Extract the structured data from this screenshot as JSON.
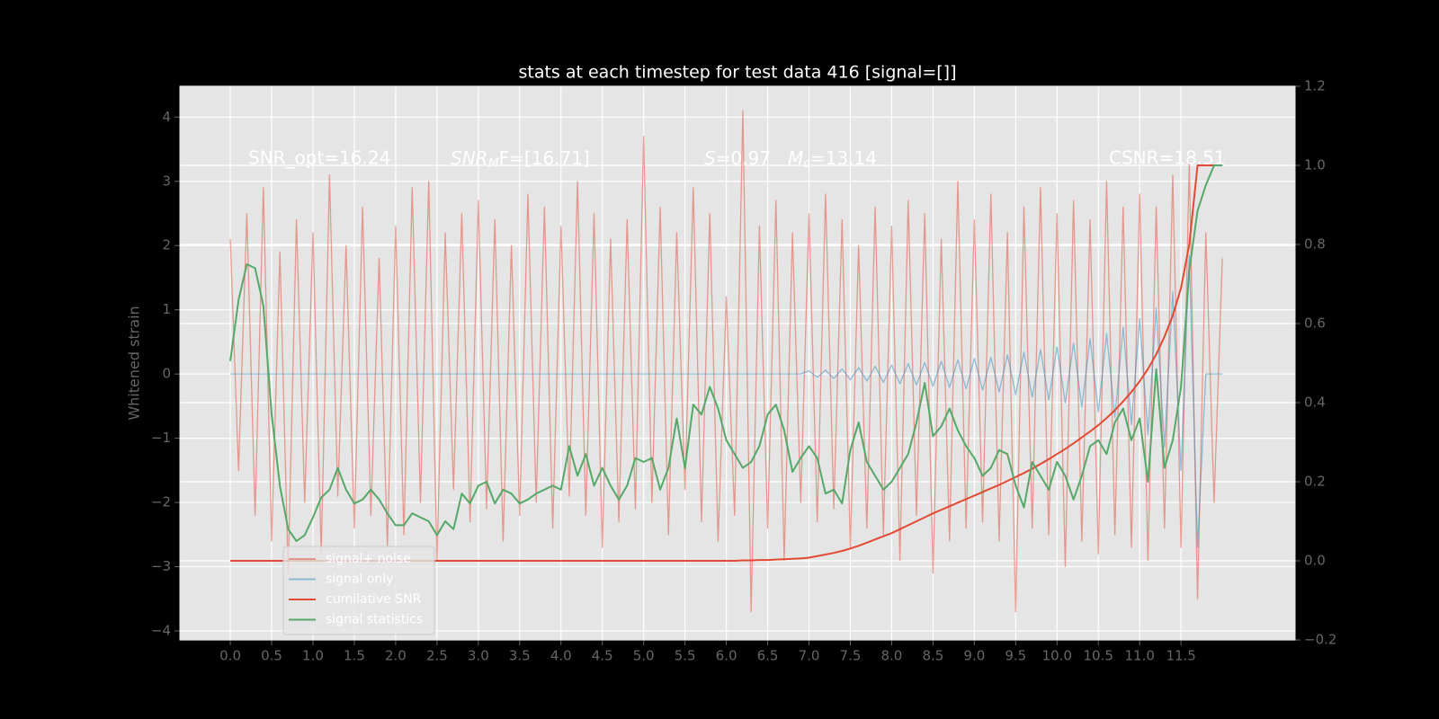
{
  "chart_data": {
    "type": "line",
    "title": "stats at each timestep for test data 416 [signal=[]]",
    "ylabel": "Whitened strain",
    "annotations": [
      {
        "text": "SNR_opt=16.24"
      },
      {
        "base": "SNR",
        "sub": "M",
        "tail": "F=[16.71]"
      },
      {
        "base": "S",
        "tail": "=0.97"
      },
      {
        "base": "M",
        "sub": "c",
        "tail": "=13.14"
      },
      {
        "text": "CSNR=18.51"
      }
    ],
    "x": [
      0.0,
      0.1,
      0.2,
      0.3,
      0.4,
      0.5,
      0.6,
      0.7,
      0.8,
      0.9,
      1.0,
      1.1,
      1.2,
      1.3,
      1.4,
      1.5,
      1.6,
      1.7,
      1.8,
      1.9,
      2.0,
      2.1,
      2.2,
      2.3,
      2.4,
      2.5,
      2.6,
      2.7,
      2.8,
      2.9,
      3.0,
      3.1,
      3.2,
      3.3,
      3.4,
      3.5,
      3.6,
      3.7,
      3.8,
      3.9,
      4.0,
      4.1,
      4.2,
      4.3,
      4.4,
      4.5,
      4.6,
      4.7,
      4.8,
      4.9,
      5.0,
      5.1,
      5.2,
      5.3,
      5.4,
      5.5,
      5.6,
      5.7,
      5.8,
      5.9,
      6.0,
      6.1,
      6.2,
      6.3,
      6.4,
      6.5,
      6.6,
      6.7,
      6.8,
      6.9,
      7.0,
      7.1,
      7.2,
      7.3,
      7.4,
      7.5,
      7.6,
      7.7,
      7.8,
      7.9,
      8.0,
      8.1,
      8.2,
      8.3,
      8.4,
      8.5,
      8.6,
      8.7,
      8.8,
      8.9,
      9.0,
      9.1,
      9.2,
      9.3,
      9.4,
      9.5,
      9.6,
      9.7,
      9.8,
      9.9,
      10.0,
      10.1,
      10.2,
      10.3,
      10.4,
      10.5,
      10.6,
      10.7,
      10.8,
      10.9,
      11.0,
      11.1,
      11.2,
      11.3,
      11.4,
      11.5,
      11.6,
      11.7,
      11.8,
      11.9,
      12.0
    ],
    "series": [
      {
        "name": "signal+ noise",
        "color": "#e24a33",
        "alpha": 0.5,
        "axis": "y",
        "values": [
          2.1,
          -1.5,
          2.5,
          -2.2,
          2.9,
          -2.6,
          1.9,
          -3.1,
          2.4,
          -2.0,
          2.2,
          -2.8,
          3.1,
          -1.9,
          2.0,
          -2.4,
          2.6,
          -2.2,
          1.8,
          -2.7,
          2.3,
          -2.5,
          2.9,
          -2.0,
          3.0,
          -2.9,
          2.2,
          -1.8,
          2.5,
          -2.3,
          2.7,
          -2.1,
          2.4,
          -2.6,
          2.0,
          -2.2,
          2.8,
          -2.0,
          2.6,
          -2.4,
          2.3,
          -1.9,
          3.0,
          -2.2,
          2.5,
          -2.7,
          2.1,
          -2.3,
          2.4,
          -2.1,
          3.7,
          -2.0,
          2.6,
          -2.5,
          2.2,
          -1.8,
          2.9,
          -2.3,
          2.5,
          -2.6,
          1.2,
          -2.2,
          4.1,
          -3.7,
          2.3,
          -2.4,
          2.7,
          -2.9,
          2.2,
          -2.0,
          2.5,
          -2.3,
          2.8,
          -2.1,
          2.4,
          -2.7,
          2.0,
          -2.4,
          2.6,
          -2.5,
          2.3,
          -2.9,
          2.7,
          -2.2,
          2.5,
          -3.1,
          2.1,
          -2.6,
          3.0,
          -2.4,
          2.4,
          -2.3,
          2.8,
          -2.6,
          2.2,
          -3.7,
          2.6,
          -2.4,
          2.9,
          -2.5,
          2.5,
          -3.0,
          2.7,
          -2.6,
          2.4,
          -2.8,
          3.0,
          -2.5,
          2.6,
          -2.7,
          2.8,
          -2.9,
          2.6,
          -2.4,
          3.1,
          -2.7,
          3.3,
          -3.5,
          2.2,
          -2.0,
          1.8
        ]
      },
      {
        "name": "signal only",
        "color": "#348abd",
        "alpha": 0.5,
        "axis": "y",
        "values": [
          0,
          0,
          0,
          0,
          0,
          0,
          0,
          0,
          0,
          0,
          0,
          0,
          0,
          0,
          0,
          0,
          0,
          0,
          0,
          0,
          0,
          0,
          0,
          0,
          0,
          0,
          0,
          0,
          0,
          0,
          0,
          0,
          0,
          0,
          0,
          0,
          0,
          0,
          0,
          0,
          0,
          0,
          0,
          0,
          0,
          0,
          0,
          0,
          0,
          0,
          0,
          0,
          0,
          0,
          0,
          0,
          0,
          0,
          0,
          0,
          0,
          0,
          0,
          0,
          0,
          0,
          0,
          0,
          0,
          0,
          0.05,
          -0.05,
          0.06,
          -0.07,
          0.08,
          -0.09,
          0.1,
          -0.11,
          0.12,
          -0.13,
          0.14,
          -0.15,
          0.16,
          -0.17,
          0.18,
          -0.19,
          0.2,
          -0.21,
          0.22,
          -0.23,
          0.24,
          -0.25,
          0.26,
          -0.28,
          0.3,
          -0.32,
          0.34,
          -0.36,
          0.38,
          -0.4,
          0.42,
          -0.45,
          0.48,
          -0.51,
          0.55,
          -0.59,
          0.63,
          -0.68,
          0.73,
          -0.79,
          0.86,
          -0.94,
          1.03,
          -1.14,
          1.28,
          -1.5,
          1.85,
          -2.7,
          0,
          0,
          0
        ]
      },
      {
        "name": "cumilative SNR",
        "color": "#e24a33",
        "axis": "y2",
        "values": [
          0,
          0,
          0,
          0,
          0,
          0,
          0,
          0,
          0,
          0,
          0,
          0,
          0,
          0,
          0,
          0,
          0,
          0,
          0,
          0,
          0,
          0,
          0,
          0,
          0,
          0,
          0,
          0,
          0,
          0,
          0,
          0,
          0,
          0,
          0,
          0,
          0,
          0,
          0,
          0,
          0,
          0,
          0,
          0,
          0,
          0,
          0,
          0,
          0,
          0,
          0,
          0,
          0,
          0,
          0,
          0,
          0,
          0,
          0,
          0,
          0,
          0,
          0.001,
          0.001,
          0.002,
          0.002,
          0.003,
          0.004,
          0.005,
          0.006,
          0.008,
          0.012,
          0.016,
          0.02,
          0.025,
          0.031,
          0.038,
          0.046,
          0.054,
          0.062,
          0.07,
          0.08,
          0.09,
          0.1,
          0.11,
          0.12,
          0.129,
          0.138,
          0.147,
          0.156,
          0.165,
          0.174,
          0.183,
          0.192,
          0.202,
          0.212,
          0.222,
          0.233,
          0.245,
          0.257,
          0.27,
          0.283,
          0.297,
          0.312,
          0.327,
          0.343,
          0.361,
          0.381,
          0.403,
          0.427,
          0.454,
          0.485,
          0.522,
          0.567,
          0.62,
          0.69,
          0.8,
          1.0,
          1.0,
          1.0,
          1.0
        ]
      },
      {
        "name": "signal statistics",
        "color": "#55a868",
        "axis": "y2",
        "values": [
          0.505,
          0.66,
          0.75,
          0.74,
          0.645,
          0.37,
          0.19,
          0.08,
          0.05,
          0.065,
          0.11,
          0.16,
          0.18,
          0.235,
          0.18,
          0.145,
          0.155,
          0.18,
          0.155,
          0.12,
          0.09,
          0.09,
          0.12,
          0.11,
          0.1,
          0.065,
          0.1,
          0.08,
          0.17,
          0.145,
          0.19,
          0.2,
          0.145,
          0.18,
          0.17,
          0.145,
          0.155,
          0.17,
          0.18,
          0.19,
          0.18,
          0.29,
          0.215,
          0.27,
          0.19,
          0.235,
          0.19,
          0.155,
          0.19,
          0.26,
          0.25,
          0.26,
          0.18,
          0.235,
          0.36,
          0.235,
          0.395,
          0.37,
          0.44,
          0.385,
          0.305,
          0.27,
          0.235,
          0.25,
          0.29,
          0.37,
          0.395,
          0.33,
          0.225,
          0.26,
          0.29,
          0.26,
          0.17,
          0.18,
          0.145,
          0.28,
          0.35,
          0.25,
          0.215,
          0.18,
          0.2,
          0.235,
          0.27,
          0.35,
          0.45,
          0.315,
          0.34,
          0.385,
          0.33,
          0.29,
          0.26,
          0.215,
          0.235,
          0.28,
          0.27,
          0.19,
          0.135,
          0.25,
          0.215,
          0.18,
          0.25,
          0.215,
          0.155,
          0.215,
          0.29,
          0.305,
          0.27,
          0.35,
          0.385,
          0.305,
          0.36,
          0.2,
          0.485,
          0.235,
          0.305,
          0.44,
          0.735,
          0.885,
          0.95,
          1.0,
          1.0
        ]
      }
    ],
    "xlim": [
      -0.61,
      12.88
    ],
    "xticks": [
      {
        "value": 0,
        "label": "0.0"
      },
      0.5,
      {
        "value": 1,
        "label": "1.0"
      },
      1.5,
      {
        "value": 2,
        "label": "2.0"
      },
      2.5,
      {
        "value": 3,
        "label": "3.0"
      },
      3.5,
      {
        "value": 4,
        "label": "4.0"
      },
      4.5,
      {
        "value": 5,
        "label": "5.0"
      },
      5.5,
      {
        "value": 6,
        "label": "6.0"
      },
      6.5,
      {
        "value": 7,
        "label": "7.0"
      },
      7.5,
      {
        "value": 8,
        "label": "8.0"
      },
      8.5,
      {
        "value": 9,
        "label": "9.0"
      },
      9.5,
      {
        "value": 10,
        "label": "10.0"
      },
      10.5,
      {
        "value": 11,
        "label": "11.0"
      },
      11.5
    ],
    "ylim": [
      -4.14,
      4.48
    ],
    "yticks": [
      {
        "value": -4,
        "label": "−4"
      },
      {
        "value": -3,
        "label": "−3"
      },
      {
        "value": -2,
        "label": "−2"
      },
      {
        "value": -1,
        "label": "−1"
      },
      0,
      1,
      2,
      3,
      4
    ],
    "y2lim": [
      -0.2,
      1.2
    ],
    "y2ticks": [
      {
        "value": -0.2,
        "label": "−0.2"
      },
      {
        "value": 0,
        "label": "0.0"
      },
      0.2,
      0.4,
      0.6,
      0.8,
      {
        "value": 1,
        "label": "1.0"
      },
      1.2
    ],
    "grid": true,
    "legend": "lower left"
  }
}
